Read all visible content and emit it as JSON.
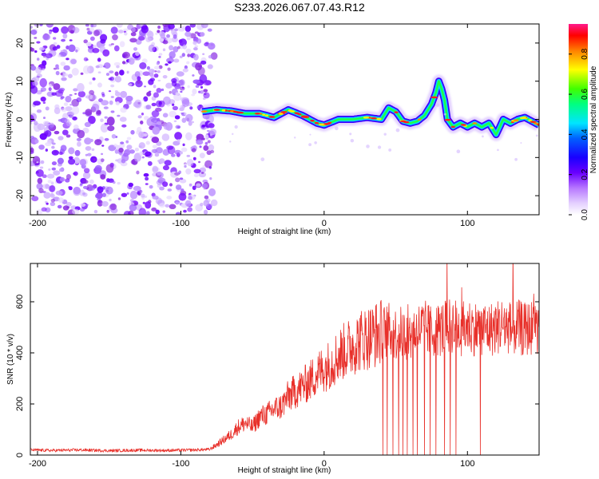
{
  "title": "S233.2026.067.07.43.R12",
  "chart_data": [
    {
      "type": "heatmap",
      "title": "S233.2026.067.07.43.R12",
      "xlabel": "Height of straight line (km)",
      "ylabel": "Frequency (Hz)",
      "xlim": [
        -205,
        150
      ],
      "ylim": [
        -25,
        25
      ],
      "xticks": [
        -200,
        -100,
        0,
        100
      ],
      "yticks": [
        -20,
        -10,
        0,
        10,
        20
      ],
      "colorbar": {
        "label": "Normalized spectral amplitude",
        "range": [
          0.0,
          0.95
        ],
        "ticks": [
          0.0,
          0.2,
          0.4,
          0.6,
          0.8
        ],
        "colormap": [
          "#ffffff",
          "#c9a6ff",
          "#8a2be2",
          "#4b00ff",
          "#0000ff",
          "#00ffff",
          "#00ff00",
          "#ffff00",
          "#ff0000",
          "#ff0080"
        ]
      },
      "noise_region_x": [
        -205,
        -80
      ],
      "ridge": {
        "x": [
          -85,
          -75,
          -65,
          -55,
          -45,
          -35,
          -25,
          -15,
          -5,
          0,
          10,
          20,
          30,
          40,
          45,
          50,
          55,
          60,
          65,
          70,
          75,
          78,
          80,
          82,
          84,
          86,
          90,
          95,
          100,
          105,
          110,
          115,
          120,
          125,
          130,
          135,
          140,
          145,
          150
        ],
        "y": [
          2,
          2.5,
          2.2,
          1.5,
          1.5,
          0.5,
          2.5,
          1.0,
          -1.0,
          -1.5,
          0,
          0,
          0.5,
          0,
          3,
          2,
          -0.5,
          -1,
          -0.5,
          1,
          4,
          7,
          10,
          8,
          5,
          0,
          -2,
          -1,
          -2,
          -1,
          -2,
          -1,
          -4,
          0,
          -1,
          0,
          0.5,
          -0.5,
          -1.5
        ]
      }
    },
    {
      "type": "line",
      "xlabel": "Height of straight line (km)",
      "ylabel": "SNR (10 * v/v)",
      "xlim": [
        -205,
        150
      ],
      "ylim": [
        0,
        750
      ],
      "xticks": [
        -200,
        -100,
        0,
        100
      ],
      "yticks": [
        0,
        200,
        400,
        600
      ],
      "color": "#e8302a",
      "series": [
        {
          "x": [
            -205,
            -190,
            -170,
            -150,
            -130,
            -110,
            -90,
            -80,
            -75,
            -70,
            -65,
            -60,
            -55,
            -50,
            -45,
            -40,
            -35,
            -30,
            -25,
            -20,
            -15,
            -10,
            -5,
            0,
            5,
            10,
            15,
            20,
            25,
            30,
            35,
            40,
            45,
            50,
            55,
            60,
            65,
            70,
            75,
            80,
            85,
            90,
            95,
            100,
            105,
            110,
            115,
            120,
            125,
            130,
            135,
            140,
            145,
            150
          ],
          "values": [
            20,
            18,
            20,
            17,
            19,
            18,
            20,
            22,
            40,
            60,
            80,
            110,
            125,
            110,
            150,
            160,
            180,
            190,
            230,
            250,
            270,
            290,
            320,
            340,
            360,
            390,
            410,
            430,
            450,
            460,
            470,
            480,
            490,
            475,
            480,
            470,
            490,
            500,
            480,
            490,
            500,
            510,
            490,
            505,
            495,
            500,
            490,
            500,
            510,
            495,
            500,
            490,
            500,
            505
          ]
        }
      ],
      "dropouts_x": [
        41,
        44,
        48,
        52,
        55,
        58,
        62,
        65,
        70,
        74,
        78,
        84,
        88,
        92,
        109
      ]
    }
  ]
}
